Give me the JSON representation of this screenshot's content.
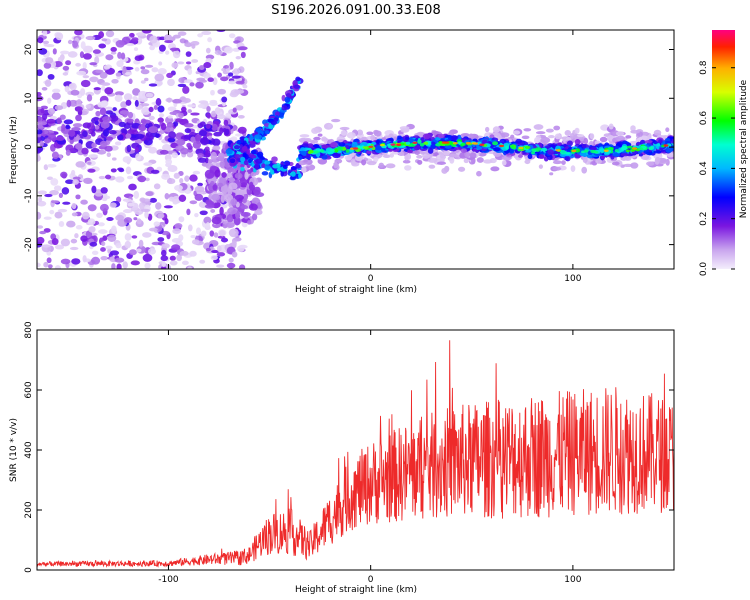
{
  "title": "S196.2026.091.00.33.E08",
  "colors": {
    "snr_line": "#ee2a2a"
  },
  "chart_data": [
    {
      "type": "heatmap",
      "xlabel": "Height of straight line (km)",
      "ylabel": "Frequency (Hz)",
      "xlim": [
        -165,
        150
      ],
      "ylim": [
        -25,
        24
      ],
      "xticks": [
        -100,
        0,
        100
      ],
      "yticks": [
        -20,
        -10,
        0,
        10,
        20
      ],
      "colorbar": {
        "label": "Normalized spectral amplitude",
        "range": [
          0,
          0.95
        ],
        "ticks": [
          0.0,
          0.2,
          0.4,
          0.6,
          0.8
        ],
        "tick_labels": [
          "0.0",
          "0.2",
          "0.4",
          "0.6",
          "0.8"
        ]
      },
      "ridge": {
        "description_free": true,
        "noise_region_x": [
          -165,
          -70
        ],
        "branch_x": [
          -70,
          -35
        ],
        "branch_freq_end": 14,
        "main_band_x": [
          -35,
          150
        ],
        "main_band_freq": 0
      }
    },
    {
      "type": "line",
      "xlabel": "Height of straight line (km)",
      "ylabel": "SNR (10 * v/v)",
      "xlim": [
        -165,
        150
      ],
      "ylim": [
        0,
        800
      ],
      "xticks": [
        -100,
        0,
        100
      ],
      "yticks": [
        0,
        200,
        400,
        600,
        800
      ],
      "series": [
        {
          "name": "SNR",
          "envelope_x": [
            -165,
            -100,
            -80,
            -65,
            -60,
            -55,
            -50,
            -40,
            -30,
            -20,
            -10,
            0,
            20,
            40,
            60,
            80,
            100,
            120,
            140,
            150
          ],
          "envelope_mean": [
            20,
            22,
            35,
            40,
            50,
            90,
            120,
            130,
            80,
            170,
            250,
            290,
            330,
            360,
            370,
            380,
            390,
            400,
            390,
            380
          ],
          "envelope_amp": [
            8,
            10,
            18,
            25,
            30,
            50,
            70,
            80,
            50,
            90,
            120,
            140,
            170,
            190,
            200,
            210,
            210,
            220,
            200,
            190
          ]
        }
      ]
    }
  ]
}
